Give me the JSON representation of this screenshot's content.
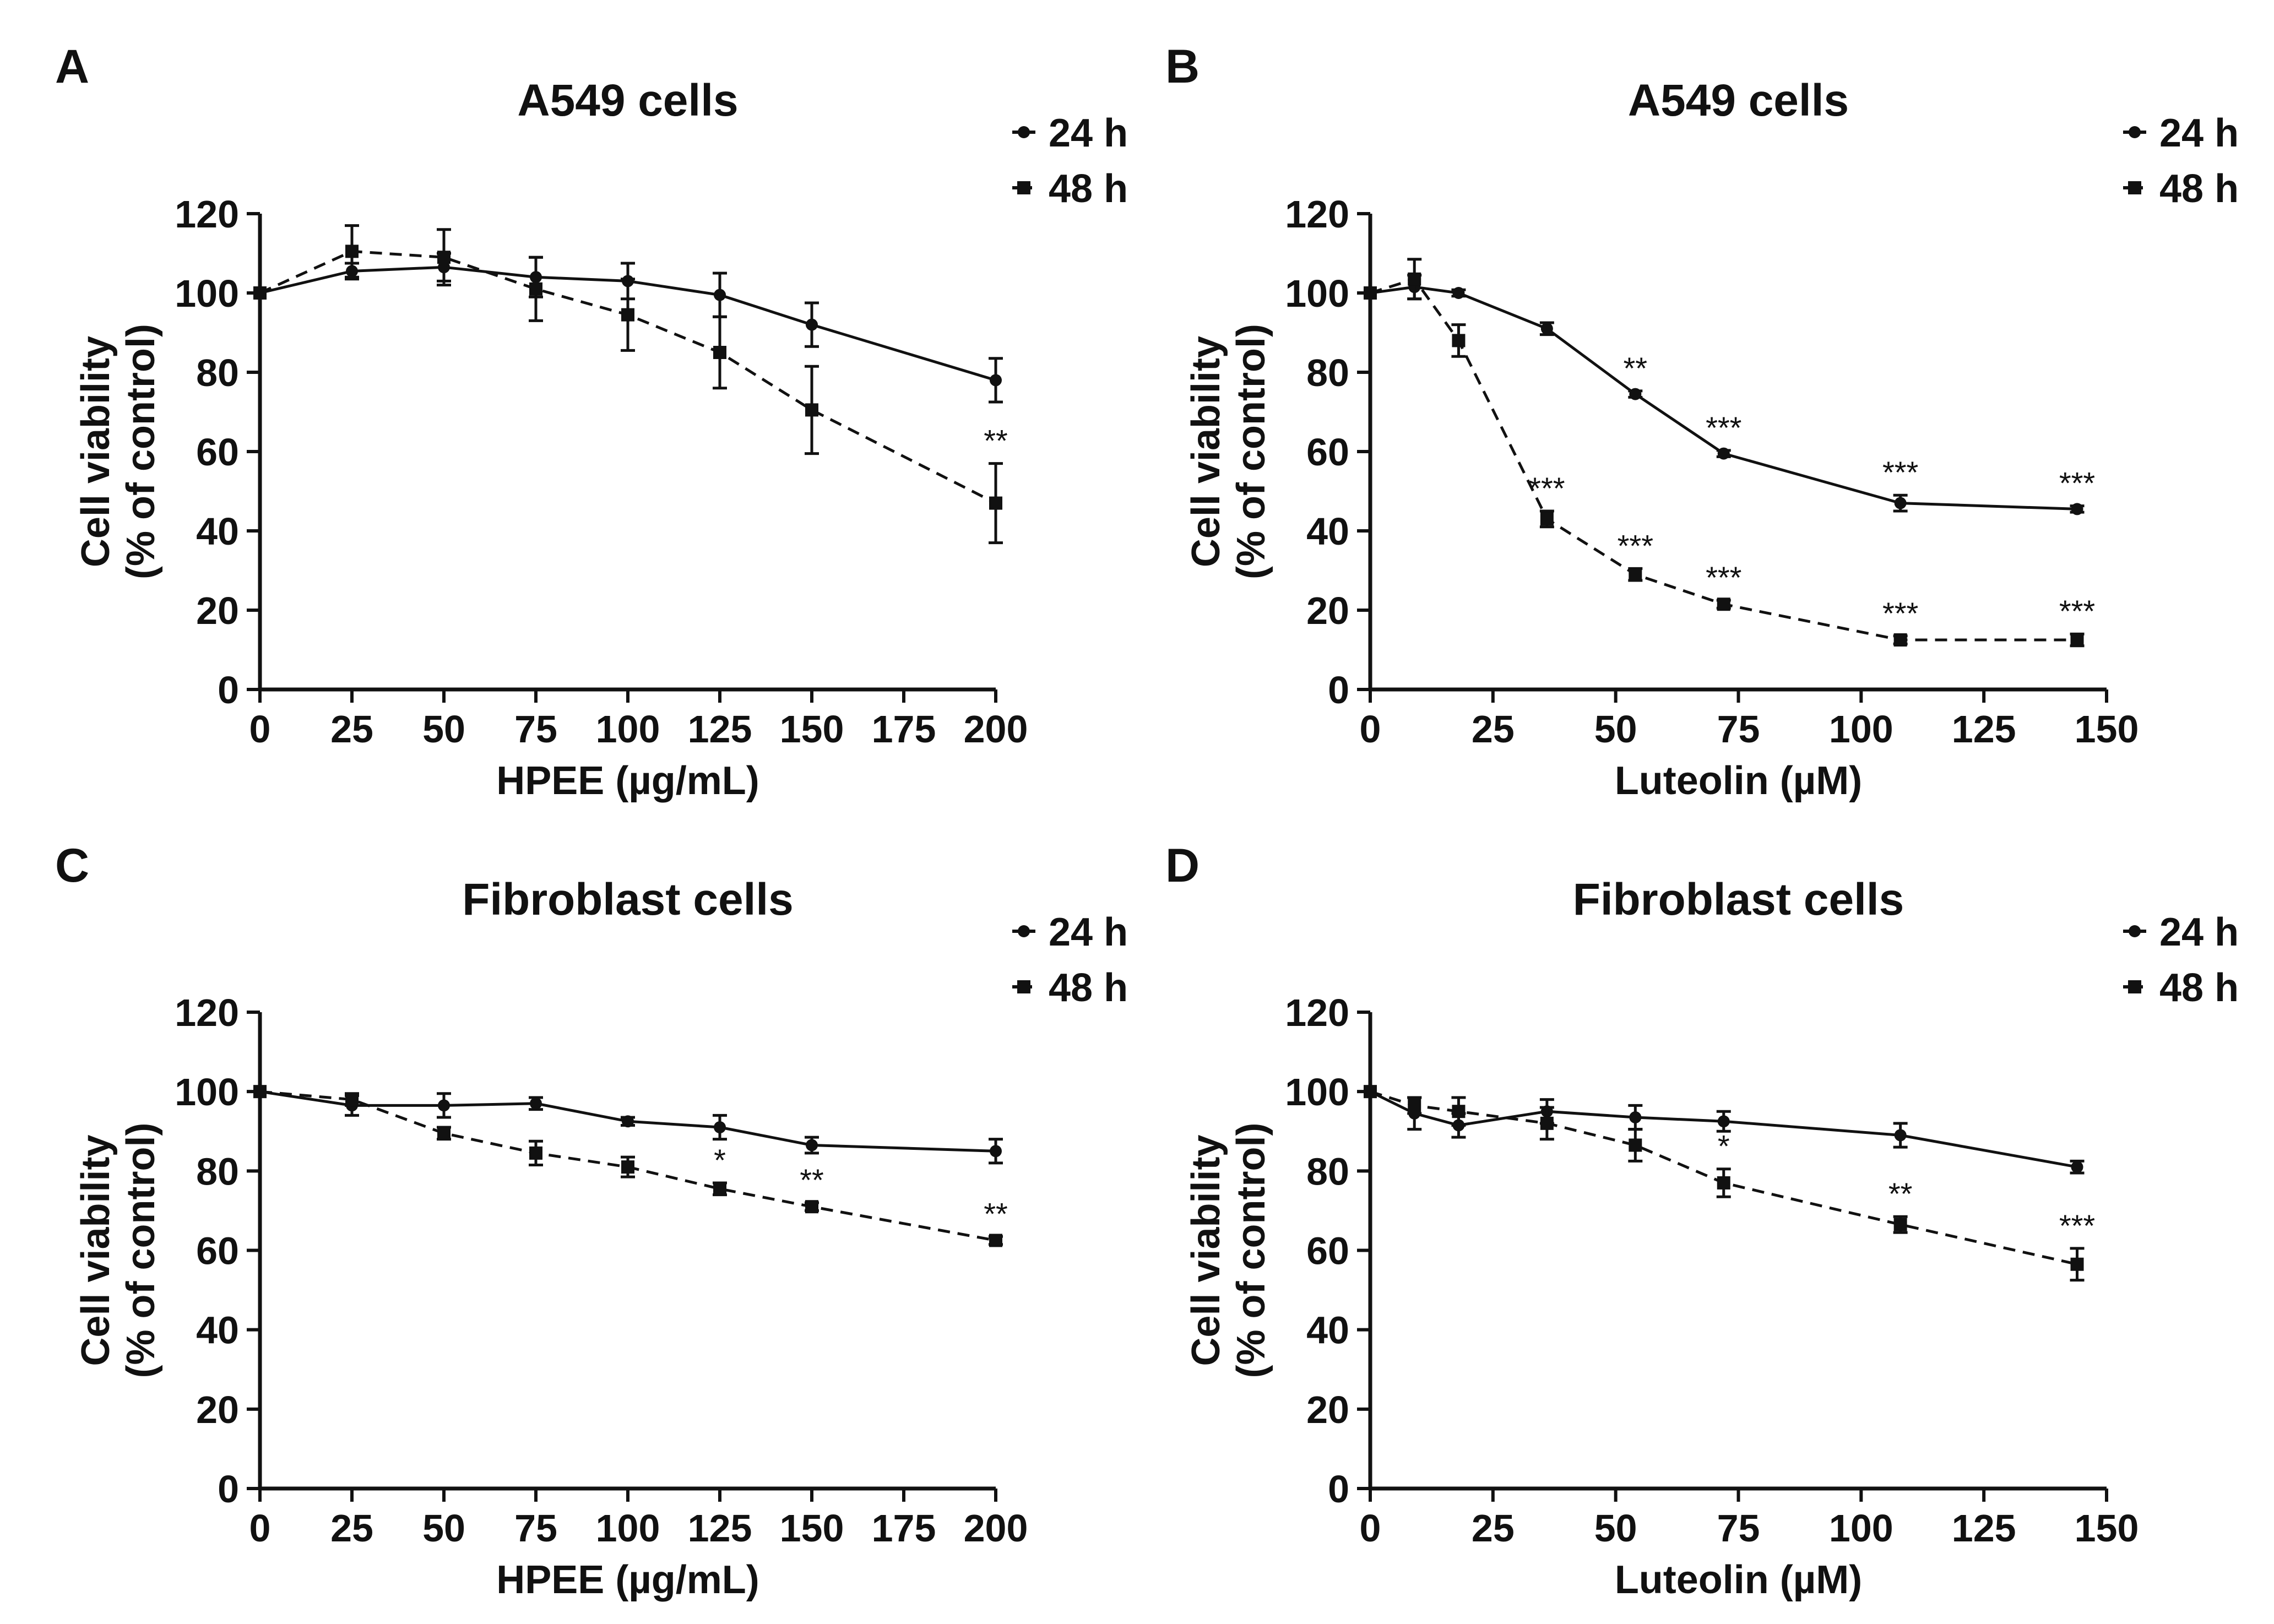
{
  "figure": {
    "description": "Cell viability assays for HPEE and Luteolin",
    "panels": [
      "A",
      "B",
      "C",
      "D"
    ]
  },
  "chart_data": [
    {
      "letter": "A",
      "type": "line",
      "title": "A549 cells",
      "xlabel": "HPEE (µg/mL)",
      "ylabel_line1": "Cell viability",
      "ylabel_line2": "(% of control)",
      "xlim": [
        0,
        200
      ],
      "ylim": [
        0,
        120
      ],
      "xticks": [
        0,
        25,
        50,
        75,
        100,
        125,
        150,
        175,
        200
      ],
      "xtick_labels": [
        "0",
        "25",
        "50",
        "75",
        "100",
        "125",
        "150",
        "175",
        "200"
      ],
      "yticks": [
        0,
        20,
        40,
        60,
        80,
        100,
        120
      ],
      "ytick_labels": [
        "0",
        "20",
        "40",
        "60",
        "80",
        "100",
        "120"
      ],
      "series": [
        {
          "name": "24 h",
          "marker": "circle",
          "line": "solid",
          "x": [
            0,
            25,
            50,
            75,
            100,
            125,
            150,
            200
          ],
          "y": [
            100,
            105.5,
            106.5,
            104,
            103,
            99.5,
            92,
            78
          ],
          "err": [
            0,
            2,
            3.5,
            5,
            4.5,
            5.5,
            5.5,
            5.5
          ],
          "sig": [
            "",
            "",
            "",
            "",
            "",
            "",
            "",
            ""
          ]
        },
        {
          "name": "48 h",
          "marker": "square",
          "line": "dashed",
          "x": [
            0,
            25,
            50,
            75,
            100,
            125,
            150,
            200
          ],
          "y": [
            100,
            110.5,
            109,
            101,
            94.5,
            85,
            70.5,
            47
          ],
          "err": [
            0,
            6.5,
            7,
            8,
            9,
            9,
            11,
            10
          ],
          "sig": [
            "",
            "",
            "",
            "",
            "",
            "",
            "",
            "**"
          ]
        }
      ]
    },
    {
      "letter": "B",
      "type": "line",
      "title": "A549 cells",
      "xlabel": "Luteolin (µM)",
      "ylabel_line1": "Cell viability",
      "ylabel_line2": "(% of control)",
      "xlim": [
        0,
        150
      ],
      "ylim": [
        0,
        120
      ],
      "xticks": [
        0,
        25,
        50,
        75,
        100,
        125,
        150
      ],
      "xtick_labels": [
        "0",
        "25",
        "50",
        "75",
        "100",
        "125",
        "150"
      ],
      "yticks": [
        0,
        20,
        40,
        60,
        80,
        100,
        120
      ],
      "ytick_labels": [
        "0",
        "20",
        "40",
        "60",
        "80",
        "100",
        "120"
      ],
      "series": [
        {
          "name": "24 h",
          "marker": "circle",
          "line": "solid",
          "x": [
            0,
            9,
            18,
            36,
            54,
            72,
            108,
            144
          ],
          "y": [
            100,
            101.5,
            100,
            91,
            74.5,
            59.5,
            47,
            45.5
          ],
          "err": [
            0,
            3,
            0.8,
            1.5,
            0.8,
            0.8,
            2,
            0.8
          ],
          "sig": [
            "",
            "",
            "",
            "",
            "**",
            "***",
            "***",
            "***"
          ]
        },
        {
          "name": "48 h",
          "marker": "square",
          "line": "dashed",
          "x": [
            0,
            9,
            18,
            36,
            54,
            72,
            108,
            144
          ],
          "y": [
            100,
            103.5,
            88,
            43,
            29,
            21.5,
            12.5,
            12.5
          ],
          "err": [
            0,
            5,
            4,
            2,
            1.5,
            1,
            1,
            1.5
          ],
          "sig": [
            "",
            "",
            "",
            "***",
            "***",
            "***",
            "***",
            "***"
          ]
        }
      ]
    },
    {
      "letter": "C",
      "type": "line",
      "title": "Fibroblast cells",
      "xlabel": "HPEE (µg/mL)",
      "ylabel_line1": "Cell viability",
      "ylabel_line2": "(% of control)",
      "xlim": [
        0,
        200
      ],
      "ylim": [
        0,
        120
      ],
      "xticks": [
        0,
        25,
        50,
        75,
        100,
        125,
        150,
        175,
        200
      ],
      "xtick_labels": [
        "0",
        "25",
        "50",
        "75",
        "100",
        "125",
        "150",
        "175",
        "200"
      ],
      "yticks": [
        0,
        20,
        40,
        60,
        80,
        100,
        120
      ],
      "ytick_labels": [
        "0",
        "20",
        "40",
        "60",
        "80",
        "100",
        "120"
      ],
      "series": [
        {
          "name": "24 h",
          "marker": "circle",
          "line": "solid",
          "x": [
            0,
            25,
            50,
            75,
            100,
            125,
            150,
            200
          ],
          "y": [
            100,
            96.5,
            96.5,
            97,
            92.5,
            91,
            86.5,
            85
          ],
          "err": [
            0,
            2.5,
            3,
            1.5,
            1,
            3,
            2,
            3
          ],
          "sig": [
            "",
            "",
            "",
            "",
            "",
            "",
            "",
            ""
          ]
        },
        {
          "name": "48 h",
          "marker": "square",
          "line": "dashed",
          "x": [
            0,
            25,
            50,
            75,
            100,
            125,
            150,
            200
          ],
          "y": [
            100,
            98,
            89.5,
            84.5,
            81,
            75.5,
            71,
            62.5
          ],
          "err": [
            0,
            1.5,
            1.5,
            3,
            2.5,
            1.5,
            1,
            1
          ],
          "sig": [
            "",
            "",
            "",
            "",
            "",
            "*",
            "**",
            "**"
          ]
        }
      ]
    },
    {
      "letter": "D",
      "type": "line",
      "title": "Fibroblast cells",
      "xlabel": "Luteolin (µM)",
      "ylabel_line1": "Cell viability",
      "ylabel_line2": "(% of control)",
      "xlim": [
        0,
        150
      ],
      "ylim": [
        0,
        120
      ],
      "xticks": [
        0,
        25,
        50,
        75,
        100,
        125,
        150
      ],
      "xtick_labels": [
        "0",
        "25",
        "50",
        "75",
        "100",
        "125",
        "150"
      ],
      "yticks": [
        0,
        20,
        40,
        60,
        80,
        100,
        120
      ],
      "ytick_labels": [
        "0",
        "20",
        "40",
        "60",
        "80",
        "100",
        "120"
      ],
      "series": [
        {
          "name": "24 h",
          "marker": "circle",
          "line": "solid",
          "x": [
            0,
            9,
            18,
            36,
            54,
            72,
            108,
            144
          ],
          "y": [
            100,
            94.5,
            91.5,
            95,
            93.5,
            92.5,
            89,
            81
          ],
          "err": [
            0,
            4,
            3,
            3,
            3,
            2.5,
            3,
            1.5
          ],
          "sig": [
            "",
            "",
            "",
            "",
            "",
            "",
            "",
            ""
          ]
        },
        {
          "name": "48 h",
          "marker": "square",
          "line": "dashed",
          "x": [
            0,
            9,
            18,
            36,
            54,
            72,
            108,
            144
          ],
          "y": [
            100,
            96.5,
            95,
            92,
            86.5,
            77,
            66.5,
            56.5
          ],
          "err": [
            0,
            2,
            3.5,
            4,
            4,
            3.5,
            2,
            4
          ],
          "sig": [
            "",
            "",
            "",
            "",
            "",
            "*",
            "**",
            "***"
          ]
        }
      ]
    }
  ]
}
